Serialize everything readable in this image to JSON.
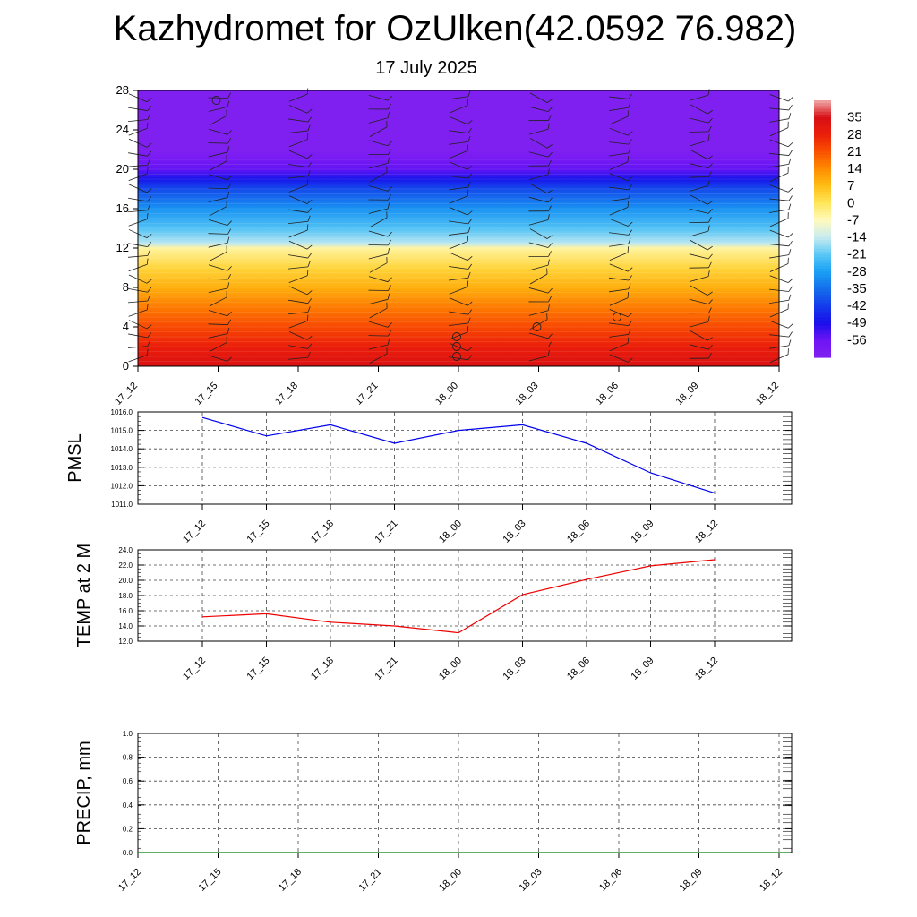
{
  "title": "Kazhydromet for OzUlken(42.0592 76.982)",
  "subtitle": "17 July 2025",
  "chart_data": [
    {
      "type": "heatmap",
      "title": "Kazhydromet for OzUlken(42.0592 76.982)",
      "subtitle": "17 July 2025",
      "x_ticks": [
        "17_12",
        "17_15",
        "17_18",
        "17_21",
        "18_00",
        "18_03",
        "18_06",
        "18_09",
        "18_12"
      ],
      "y_ticks": [
        "0",
        "4",
        "8",
        "12",
        "16",
        "20",
        "24",
        "28"
      ],
      "ylim": [
        0,
        28
      ],
      "colorbar": {
        "labels": [
          "35",
          "28",
          "21",
          "14",
          "7",
          "0",
          "-7",
          "-14",
          "-21",
          "-28",
          "-35",
          "-42",
          "-49",
          "-56"
        ],
        "range": [
          -60,
          38
        ]
      },
      "temperature_profile": [
        {
          "level": 0,
          "value": 34
        },
        {
          "level": 2,
          "value": 28
        },
        {
          "level": 4,
          "value": 22
        },
        {
          "level": 6,
          "value": 16
        },
        {
          "level": 8,
          "value": 9
        },
        {
          "level": 10,
          "value": 3
        },
        {
          "level": 12,
          "value": -5
        },
        {
          "level": 12.5,
          "value": -15
        },
        {
          "level": 14,
          "value": -22
        },
        {
          "level": 16,
          "value": -30
        },
        {
          "level": 18,
          "value": -40
        },
        {
          "level": 19,
          "value": -48
        },
        {
          "level": 20,
          "value": -55
        },
        {
          "level": 21,
          "value": -58
        },
        {
          "level": 22,
          "value": -60
        },
        {
          "level": 28,
          "value": -60
        }
      ],
      "grid": false
    },
    {
      "type": "line",
      "ylabel": "PMSL",
      "categories": [
        "17_12",
        "17_15",
        "17_18",
        "17_21",
        "18_00",
        "18_03",
        "18_06",
        "18_09",
        "18_12"
      ],
      "series": [
        {
          "values": [
            1015.7,
            1014.7,
            1015.3,
            1014.3,
            1015.0,
            1015.3,
            1014.3,
            1012.7,
            1011.6
          ],
          "color": "#0000ee"
        }
      ],
      "ylim": [
        1011.0,
        1016.0
      ],
      "y_ticks": [
        "1011.0",
        "1012.0",
        "1013.0",
        "1014.0",
        "1015.0",
        "1016.0"
      ],
      "grid": true
    },
    {
      "type": "line",
      "ylabel": "TEMP at 2 M",
      "categories": [
        "17_12",
        "17_15",
        "17_18",
        "17_21",
        "18_00",
        "18_03",
        "18_06",
        "18_09",
        "18_12"
      ],
      "series": [
        {
          "values": [
            15.2,
            15.6,
            14.5,
            14.0,
            13.1,
            18.1,
            20.1,
            21.9,
            22.7
          ],
          "color": "#ee0000"
        }
      ],
      "ylim": [
        12.0,
        24.0
      ],
      "y_ticks": [
        "12.0",
        "14.0",
        "16.0",
        "18.0",
        "20.0",
        "22.0",
        "24.0"
      ],
      "grid": true
    },
    {
      "type": "line",
      "ylabel": "PRECIP, mm",
      "categories": [
        "17_12",
        "17_15",
        "17_18",
        "17_21",
        "18_00",
        "18_03",
        "18_06",
        "18_09",
        "18_12"
      ],
      "series": [
        {
          "values": [
            0,
            0,
            0,
            0,
            0,
            0,
            0,
            0,
            0
          ],
          "color": "#008000"
        }
      ],
      "ylim": [
        0,
        1.0
      ],
      "y_ticks": [
        "0.0",
        "0.2",
        "0.4",
        "0.6",
        "0.8",
        "1.0"
      ],
      "grid": true
    }
  ]
}
